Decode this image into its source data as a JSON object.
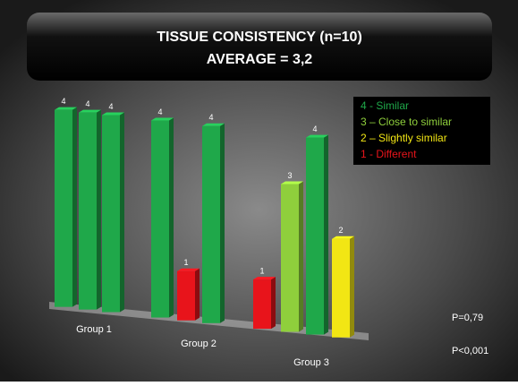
{
  "chart_data": {
    "type": "bar3d",
    "title": "TISSUE CONSISTENCY (n=10)",
    "subtitle": "AVERAGE = 3,2",
    "groups": [
      {
        "name": "Group 1",
        "values": [
          4,
          4,
          4
        ],
        "colors": [
          "#1fa84a",
          "#1fa84a",
          "#1fa84a"
        ]
      },
      {
        "name": "Group 2",
        "values": [
          4,
          1,
          4
        ],
        "colors": [
          "#1fa84a",
          "#e8141b",
          "#1fa84a"
        ]
      },
      {
        "name": "Group 3",
        "values": [
          1,
          3,
          4,
          2
        ],
        "colors": [
          "#e8141b",
          "#8fcf3c",
          "#1fa84a",
          "#f2e614"
        ]
      }
    ],
    "legend": [
      {
        "label": "4 - Similar",
        "color": "#1fa84a"
      },
      {
        "label": "3 – Close to similar",
        "color": "#8fcf3c"
      },
      {
        "label": "2 – Slightly similar",
        "color": "#f2e614"
      },
      {
        "label": "1 - Different",
        "color": "#e8141b"
      }
    ],
    "annotations": [
      "P=0,79",
      "P<0,001"
    ]
  }
}
